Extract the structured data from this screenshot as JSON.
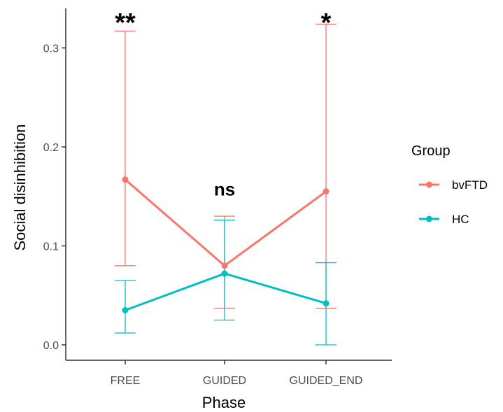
{
  "chart_data": {
    "type": "line",
    "title": "",
    "xlabel": "Phase",
    "ylabel": "Social disinhibition",
    "categories": [
      "FREE",
      "GUIDED",
      "GUIDED_END"
    ],
    "ylim": [
      -0.01,
      0.34
    ],
    "yticks": [
      0.0,
      0.1,
      0.2,
      0.3
    ],
    "ytick_labels": [
      "0.0",
      "0.1",
      "0.2",
      "0.3"
    ],
    "grid": false,
    "legend": {
      "title": "Group",
      "position": "right"
    },
    "series": [
      {
        "name": "bvFTD",
        "color": "#F8766D",
        "values": [
          0.167,
          0.08,
          0.155
        ],
        "error_low": [
          0.08,
          0.037,
          0.037
        ],
        "error_high": [
          0.317,
          0.13,
          0.324
        ]
      },
      {
        "name": "HC",
        "color": "#00BFC4",
        "values": [
          0.035,
          0.072,
          0.042
        ],
        "error_low": [
          0.012,
          0.025,
          0.0
        ],
        "error_high": [
          0.065,
          0.126,
          0.083
        ]
      }
    ],
    "annotations": [
      {
        "category": "FREE",
        "text": "**",
        "y": 0.335
      },
      {
        "category": "GUIDED",
        "text": "ns",
        "y": 0.158
      },
      {
        "category": "GUIDED_END",
        "text": "*",
        "y": 0.335
      }
    ]
  }
}
